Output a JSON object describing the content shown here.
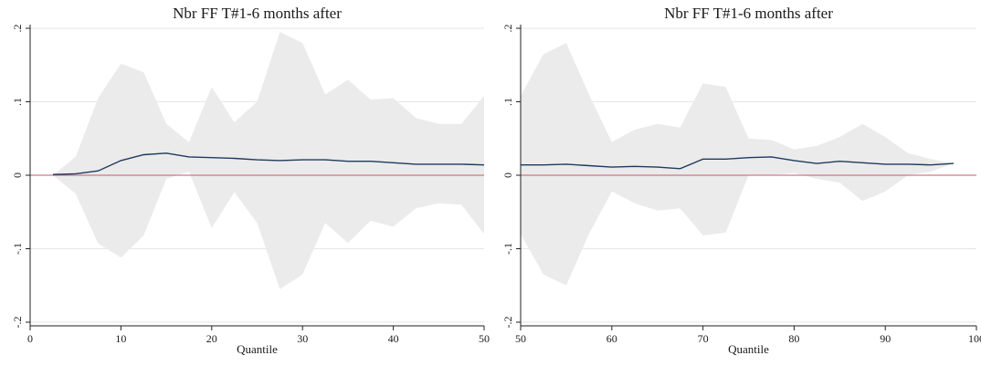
{
  "colors": {
    "band": "#ebebeb",
    "line": "#1f3a5f",
    "zero_line": "#c95a6e",
    "grid": "#e6e6e6",
    "axis": "#222222"
  },
  "chart_data": [
    {
      "type": "area",
      "title": "Nbr FF T#1-6 months after",
      "xlabel": "Quantile",
      "ylabel": "",
      "xlim": [
        0,
        50
      ],
      "ylim": [
        -0.2,
        0.2
      ],
      "x_ticks": [
        0,
        10,
        20,
        30,
        40,
        50
      ],
      "y_ticks": [
        -0.2,
        -0.1,
        0,
        0.1,
        0.2
      ],
      "y_tick_labels": [
        "-.2",
        "-.1",
        "0",
        ".1",
        ".2"
      ],
      "grid": true,
      "reference_line": 0,
      "x": [
        2.5,
        5,
        7.5,
        10,
        12.5,
        15,
        17.5,
        20,
        22.5,
        25,
        27.5,
        30,
        32.5,
        35,
        37.5,
        40,
        42.5,
        45,
        47.5,
        50
      ],
      "series": [
        {
          "type": "line",
          "values": [
            0.001,
            0.002,
            0.006,
            0.02,
            0.028,
            0.03,
            0.025,
            0.024,
            0.023,
            0.021,
            0.02,
            0.021,
            0.021,
            0.019,
            0.019,
            0.017,
            0.015,
            0.015,
            0.015,
            0.014
          ]
        },
        {
          "type": "band",
          "lower": [
            0.0,
            -0.025,
            -0.093,
            -0.112,
            -0.082,
            -0.005,
            0.005,
            -0.072,
            -0.023,
            -0.065,
            -0.155,
            -0.135,
            -0.065,
            -0.092,
            -0.062,
            -0.07,
            -0.045,
            -0.038,
            -0.04,
            -0.08
          ],
          "upper": [
            0.0,
            0.025,
            0.105,
            0.152,
            0.14,
            0.07,
            0.045,
            0.12,
            0.072,
            0.1,
            0.195,
            0.18,
            0.11,
            0.13,
            0.103,
            0.105,
            0.078,
            0.07,
            0.07,
            0.108
          ]
        }
      ]
    },
    {
      "type": "area",
      "title": "Nbr FF T#1-6 months after",
      "xlabel": "Quantile",
      "ylabel": "",
      "xlim": [
        50,
        100
      ],
      "ylim": [
        -0.2,
        0.2
      ],
      "x_ticks": [
        50,
        60,
        70,
        80,
        90,
        100
      ],
      "y_ticks": [
        -0.2,
        -0.1,
        0,
        0.1,
        0.2
      ],
      "y_tick_labels": [
        "-.2",
        "-.1",
        "0",
        ".1",
        ".2"
      ],
      "grid": true,
      "reference_line": 0,
      "x": [
        50,
        52.5,
        55,
        57.5,
        60,
        62.5,
        65,
        67.5,
        70,
        72.5,
        75,
        77.5,
        80,
        82.5,
        85,
        87.5,
        90,
        92.5,
        95,
        97.5
      ],
      "series": [
        {
          "type": "line",
          "values": [
            0.014,
            0.014,
            0.015,
            0.013,
            0.011,
            0.012,
            0.011,
            0.009,
            0.022,
            0.022,
            0.024,
            0.025,
            0.02,
            0.016,
            0.019,
            0.017,
            0.015,
            0.015,
            0.014,
            0.016
          ]
        },
        {
          "type": "band",
          "lower": [
            -0.08,
            -0.135,
            -0.15,
            -0.08,
            -0.022,
            -0.038,
            -0.048,
            -0.045,
            -0.082,
            -0.078,
            0.0,
            0.0,
            0.003,
            -0.005,
            -0.01,
            -0.035,
            -0.022,
            0.0,
            0.005,
            0.016
          ],
          "upper": [
            0.108,
            0.165,
            0.18,
            0.11,
            0.045,
            0.062,
            0.07,
            0.065,
            0.125,
            0.12,
            0.05,
            0.048,
            0.035,
            0.04,
            0.052,
            0.07,
            0.052,
            0.03,
            0.022,
            0.016
          ]
        }
      ]
    }
  ]
}
